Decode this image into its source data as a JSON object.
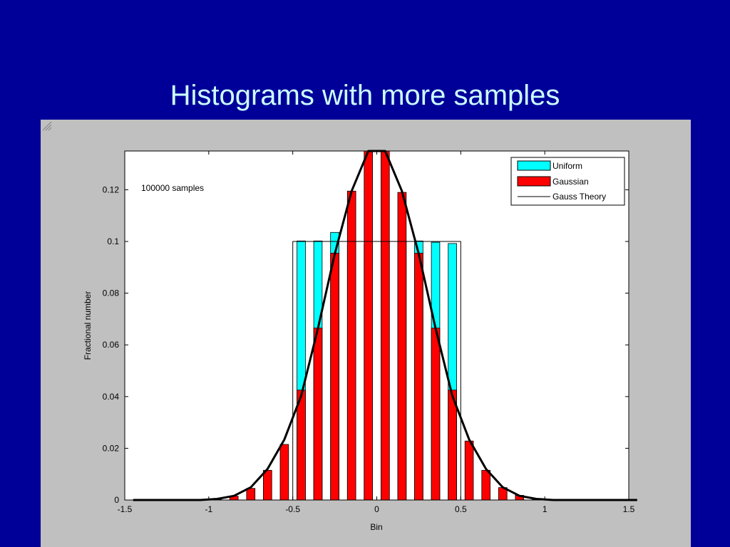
{
  "slide": {
    "title": "Histograms with more samples"
  },
  "chart_data": {
    "type": "bar",
    "xlabel": "Bin",
    "ylabel": "Fractional number",
    "annotation": "100000 samples",
    "xlim": [
      -1.5,
      1.5
    ],
    "ylim": [
      0,
      0.135
    ],
    "xticks": [
      "-1.5",
      "-1",
      "-0.5",
      "0",
      "0.5",
      "1",
      "1.5"
    ],
    "xtick_values": [
      -1.5,
      -1,
      -0.5,
      0,
      0.5,
      1,
      1.5
    ],
    "yticks": [
      "0",
      "0.02",
      "0.04",
      "0.06",
      "0.08",
      "0.1",
      "0.12"
    ],
    "ytick_values": [
      0,
      0.02,
      0.04,
      0.06,
      0.08,
      0.1,
      0.12
    ],
    "grid": false,
    "legend_position": "top-right",
    "bin_width": 0.1,
    "series": [
      {
        "name": "Uniform",
        "color": "#00ffff",
        "x": [
          -0.45,
          -0.35,
          -0.25,
          -0.15,
          -0.05,
          0.05,
          0.15,
          0.25,
          0.35,
          0.45
        ],
        "values": [
          0.1002,
          0.1002,
          0.1035,
          0.0987,
          0.0987,
          0.0997,
          0.1002,
          0.1002,
          0.0997,
          0.0992
        ]
      },
      {
        "name": "Gaussian",
        "color": "#ff0000",
        "x": [
          -0.95,
          -0.85,
          -0.75,
          -0.65,
          -0.55,
          -0.45,
          -0.35,
          -0.25,
          -0.15,
          -0.05,
          0.05,
          0.15,
          0.25,
          0.35,
          0.45,
          0.55,
          0.65,
          0.75,
          0.85,
          0.95
        ],
        "values": [
          0.0002,
          0.0015,
          0.0045,
          0.0115,
          0.0215,
          0.0425,
          0.0665,
          0.0955,
          0.1195,
          0.136,
          0.136,
          0.119,
          0.0955,
          0.0665,
          0.0425,
          0.0228,
          0.0115,
          0.0048,
          0.0018,
          0.0004
        ]
      },
      {
        "name": "Gauss Theory",
        "color": "#000000",
        "line_width": 3,
        "x": [
          -1.45,
          -1.35,
          -1.25,
          -1.15,
          -1.05,
          -0.95,
          -0.85,
          -0.75,
          -0.65,
          -0.55,
          -0.45,
          -0.35,
          -0.25,
          -0.15,
          -0.05,
          0.05,
          0.15,
          0.25,
          0.35,
          0.45,
          0.55,
          0.65,
          0.75,
          0.85,
          0.95,
          1.05,
          1.15,
          1.25,
          1.35,
          1.45,
          1.55
        ],
        "values": [
          0,
          0,
          0,
          0,
          0,
          0.0004,
          0.0016,
          0.0049,
          0.012,
          0.0234,
          0.0403,
          0.0664,
          0.0952,
          0.1195,
          0.1359,
          0.1359,
          0.1195,
          0.0952,
          0.0664,
          0.0403,
          0.0234,
          0.012,
          0.0049,
          0.0016,
          0.0004,
          0,
          0,
          0,
          0,
          0,
          0
        ]
      },
      {
        "name": "Uniform Theory",
        "color": "#000000",
        "line_width": 1,
        "x": [
          -0.5,
          -0.5,
          0.5,
          0.5
        ],
        "values": [
          0,
          0.1,
          0.1,
          0
        ]
      }
    ],
    "legend": [
      "Uniform",
      "Gaussian",
      "Gauss Theory"
    ]
  }
}
